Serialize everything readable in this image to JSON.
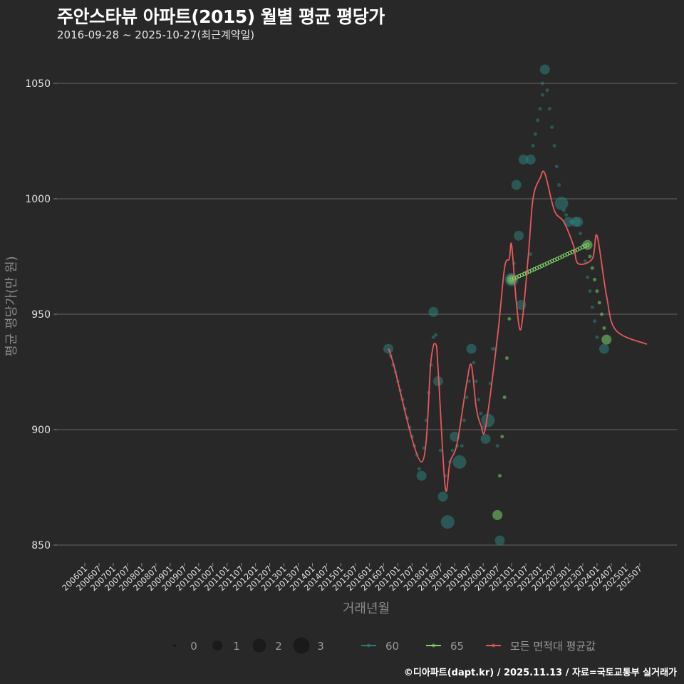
{
  "header": {
    "title": "주안스타뷰 아파트(2015) 월별 평균 평당가",
    "subtitle": "2016-09-28 ~ 2025-10-27(최근계약일)"
  },
  "footer": {
    "credit": "©디아파트(dapt.kr) / 2025.11.13 / 자료=국토교통부 실거래가"
  },
  "colors": {
    "background": "#282828",
    "grid": "#666666",
    "series_60": "#2e7d7a",
    "series_65": "#7fd26a",
    "average_line": "#e8575c"
  },
  "chart_data": {
    "type": "scatter",
    "title": "주안스타뷰 아파트(2015) 월별 평균 평당가",
    "subtitle": "2016-09-28 ~ 2025-10-27(최근계약일)",
    "xlabel": "거래년월",
    "ylabel": "평균 평당가(만 원)",
    "ylim": [
      842,
      1060
    ],
    "yticks": [
      850,
      900,
      950,
      1000,
      1050
    ],
    "xticks": [
      "200601",
      "200607",
      "200701",
      "200707",
      "200801",
      "200807",
      "200901",
      "200907",
      "201001",
      "201007",
      "201101",
      "201107",
      "201201",
      "201207",
      "201301",
      "201307",
      "201401",
      "201407",
      "201501",
      "201507",
      "201601",
      "201607",
      "201701",
      "201707",
      "201801",
      "201807",
      "201901",
      "201907",
      "202001",
      "202007",
      "202101",
      "202107",
      "202201",
      "202207",
      "202301",
      "202307",
      "202401",
      "202407",
      "202501",
      "202507"
    ],
    "grid": true,
    "legend": {
      "size_title": "",
      "sizes": [
        {
          "label": "0",
          "r": 2
        },
        {
          "label": "1",
          "r": 7
        },
        {
          "label": "2",
          "r": 9.5
        },
        {
          "label": "3",
          "r": 11.5
        }
      ],
      "series": [
        {
          "label": "60",
          "color": "#2e7d7a"
        },
        {
          "label": "65",
          "color": "#7fd26a"
        },
        {
          "label": "모든 면적대 평균값",
          "color": "#e8575c"
        }
      ]
    },
    "series": [
      {
        "name": "60",
        "color": "#2e7d7a",
        "points": [
          {
            "x": "201609",
            "y": 935,
            "n": 1
          },
          {
            "x": "201610",
            "y": 932,
            "n": 0
          },
          {
            "x": "201611",
            "y": 928,
            "n": 0
          },
          {
            "x": "201612",
            "y": 925,
            "n": 0
          },
          {
            "x": "201701",
            "y": 921,
            "n": 0
          },
          {
            "x": "201702",
            "y": 917,
            "n": 0
          },
          {
            "x": "201703",
            "y": 913,
            "n": 0
          },
          {
            "x": "201704",
            "y": 909,
            "n": 0
          },
          {
            "x": "201705",
            "y": 905,
            "n": 0
          },
          {
            "x": "201706",
            "y": 901,
            "n": 0
          },
          {
            "x": "201707",
            "y": 897,
            "n": 0
          },
          {
            "x": "201708",
            "y": 893,
            "n": 0
          },
          {
            "x": "201709",
            "y": 889,
            "n": 0
          },
          {
            "x": "201710",
            "y": 883,
            "n": 0
          },
          {
            "x": "201711",
            "y": 880,
            "n": 1
          },
          {
            "x": "201712",
            "y": 892,
            "n": 0
          },
          {
            "x": "201801",
            "y": 904,
            "n": 0
          },
          {
            "x": "201802",
            "y": 916,
            "n": 0
          },
          {
            "x": "201803",
            "y": 928,
            "n": 0
          },
          {
            "x": "201804",
            "y": 951,
            "n": 1
          },
          {
            "x": "201804",
            "y": 940,
            "n": 0
          },
          {
            "x": "201805",
            "y": 941,
            "n": 0
          },
          {
            "x": "201806",
            "y": 921,
            "n": 1
          },
          {
            "x": "201807",
            "y": 891,
            "n": 0
          },
          {
            "x": "201808",
            "y": 871,
            "n": 1
          },
          {
            "x": "201809",
            "y": 880,
            "n": 0
          },
          {
            "x": "201810",
            "y": 860,
            "n": 2
          },
          {
            "x": "201811",
            "y": 886,
            "n": 0
          },
          {
            "x": "201812",
            "y": 891,
            "n": 0
          },
          {
            "x": "201901",
            "y": 897,
            "n": 1
          },
          {
            "x": "201902",
            "y": 893,
            "n": 0
          },
          {
            "x": "201903",
            "y": 886,
            "n": 2
          },
          {
            "x": "201904",
            "y": 893,
            "n": 0
          },
          {
            "x": "201905",
            "y": 904,
            "n": 0
          },
          {
            "x": "201906",
            "y": 914,
            "n": 0
          },
          {
            "x": "201907",
            "y": 921,
            "n": 0
          },
          {
            "x": "201908",
            "y": 935,
            "n": 1
          },
          {
            "x": "201909",
            "y": 929,
            "n": 0
          },
          {
            "x": "201910",
            "y": 921,
            "n": 0
          },
          {
            "x": "201911",
            "y": 913,
            "n": 0
          },
          {
            "x": "201912",
            "y": 907,
            "n": 0
          },
          {
            "x": "202001",
            "y": 901,
            "n": 0
          },
          {
            "x": "202002",
            "y": 896,
            "n": 1
          },
          {
            "x": "202003",
            "y": 904,
            "n": 2
          },
          {
            "x": "202004",
            "y": 920,
            "n": 0
          },
          {
            "x": "202005",
            "y": 935,
            "n": 0
          },
          {
            "x": "202006",
            "y": 935,
            "n": 0
          },
          {
            "x": "202007",
            "y": 893,
            "n": 0
          },
          {
            "x": "202008",
            "y": 852,
            "n": 1
          },
          {
            "x": "202101",
            "y": 965,
            "n": 2
          },
          {
            "x": "202102",
            "y": 972,
            "n": 0
          },
          {
            "x": "202103",
            "y": 1006,
            "n": 1
          },
          {
            "x": "202104",
            "y": 984,
            "n": 1
          },
          {
            "x": "202105",
            "y": 954,
            "n": 1
          },
          {
            "x": "202106",
            "y": 1017,
            "n": 1
          },
          {
            "x": "202109",
            "y": 1017,
            "n": 1
          },
          {
            "x": "202109",
            "y": 976,
            "n": 0
          },
          {
            "x": "202110",
            "y": 1023,
            "n": 0
          },
          {
            "x": "202111",
            "y": 1028,
            "n": 0
          },
          {
            "x": "202112",
            "y": 1034,
            "n": 0
          },
          {
            "x": "202201",
            "y": 1039,
            "n": 0
          },
          {
            "x": "202202",
            "y": 1045,
            "n": 0
          },
          {
            "x": "202202",
            "y": 1050,
            "n": 0
          },
          {
            "x": "202203",
            "y": 1056,
            "n": 1
          },
          {
            "x": "202204",
            "y": 1047,
            "n": 0
          },
          {
            "x": "202205",
            "y": 1039,
            "n": 0
          },
          {
            "x": "202206",
            "y": 1031,
            "n": 0
          },
          {
            "x": "202207",
            "y": 1023,
            "n": 0
          },
          {
            "x": "202208",
            "y": 1014,
            "n": 0
          },
          {
            "x": "202209",
            "y": 1006,
            "n": 0
          },
          {
            "x": "202210",
            "y": 998,
            "n": 2
          },
          {
            "x": "202211",
            "y": 995,
            "n": 0
          },
          {
            "x": "202212",
            "y": 993,
            "n": 0
          },
          {
            "x": "202301",
            "y": 990,
            "n": 1
          },
          {
            "x": "202302",
            "y": 990,
            "n": 0
          },
          {
            "x": "202303",
            "y": 990,
            "n": 0
          },
          {
            "x": "202304",
            "y": 990,
            "n": 1
          },
          {
            "x": "202305",
            "y": 990,
            "n": 1
          },
          {
            "x": "202306",
            "y": 985,
            "n": 0
          },
          {
            "x": "202307",
            "y": 980,
            "n": 0
          },
          {
            "x": "202308",
            "y": 973,
            "n": 0
          },
          {
            "x": "202309",
            "y": 966,
            "n": 0
          },
          {
            "x": "202310",
            "y": 960,
            "n": 0
          },
          {
            "x": "202311",
            "y": 953,
            "n": 0
          },
          {
            "x": "202312",
            "y": 947,
            "n": 0
          },
          {
            "x": "202401",
            "y": 940,
            "n": 0
          },
          {
            "x": "202404",
            "y": 935,
            "n": 1
          }
        ]
      },
      {
        "name": "65",
        "color": "#7fd26a",
        "points": [
          {
            "x": "202007",
            "y": 863,
            "n": 1
          },
          {
            "x": "202008",
            "y": 880,
            "n": 0
          },
          {
            "x": "202009",
            "y": 897,
            "n": 0
          },
          {
            "x": "202010",
            "y": 914,
            "n": 0
          },
          {
            "x": "202011",
            "y": 931,
            "n": 0
          },
          {
            "x": "202012",
            "y": 948,
            "n": 0
          },
          {
            "x": "202101",
            "y": 965,
            "n": 1
          },
          {
            "x": "202309",
            "y": 980,
            "n": 1
          },
          {
            "x": "202310",
            "y": 975,
            "n": 0
          },
          {
            "x": "202311",
            "y": 970,
            "n": 0
          },
          {
            "x": "202312",
            "y": 965,
            "n": 0
          },
          {
            "x": "202401",
            "y": 960,
            "n": 0
          },
          {
            "x": "202402",
            "y": 955,
            "n": 0
          },
          {
            "x": "202403",
            "y": 950,
            "n": 0
          },
          {
            "x": "202404",
            "y": 944,
            "n": 0
          },
          {
            "x": "202405",
            "y": 939,
            "n": 1
          }
        ]
      },
      {
        "name": "모든 면적대 평균값",
        "color": "#e8575c",
        "type": "line",
        "points": [
          {
            "x": "201609",
            "y": 935
          },
          {
            "x": "201611",
            "y": 929
          },
          {
            "x": "201711",
            "y": 886
          },
          {
            "x": "201803",
            "y": 930
          },
          {
            "x": "201805",
            "y": 937
          },
          {
            "x": "201806",
            "y": 926
          },
          {
            "x": "201809",
            "y": 875
          },
          {
            "x": "201811",
            "y": 886
          },
          {
            "x": "201902",
            "y": 894
          },
          {
            "x": "201906",
            "y": 920
          },
          {
            "x": "201908",
            "y": 928
          },
          {
            "x": "201910",
            "y": 910
          },
          {
            "x": "201912",
            "y": 902
          },
          {
            "x": "202002",
            "y": 901
          },
          {
            "x": "202007",
            "y": 940
          },
          {
            "x": "202010",
            "y": 970
          },
          {
            "x": "202012",
            "y": 974
          },
          {
            "x": "202101",
            "y": 980
          },
          {
            "x": "202103",
            "y": 955
          },
          {
            "x": "202105",
            "y": 944
          },
          {
            "x": "202108",
            "y": 975
          },
          {
            "x": "202110",
            "y": 1000
          },
          {
            "x": "202201",
            "y": 1009
          },
          {
            "x": "202203",
            "y": 1011
          },
          {
            "x": "202207",
            "y": 995
          },
          {
            "x": "202211",
            "y": 990
          },
          {
            "x": "202303",
            "y": 980
          },
          {
            "x": "202305",
            "y": 972
          },
          {
            "x": "202311",
            "y": 974
          },
          {
            "x": "202401",
            "y": 984
          },
          {
            "x": "202405",
            "y": 958
          },
          {
            "x": "202409",
            "y": 943
          },
          {
            "x": "202510",
            "y": 937
          }
        ]
      }
    ]
  }
}
